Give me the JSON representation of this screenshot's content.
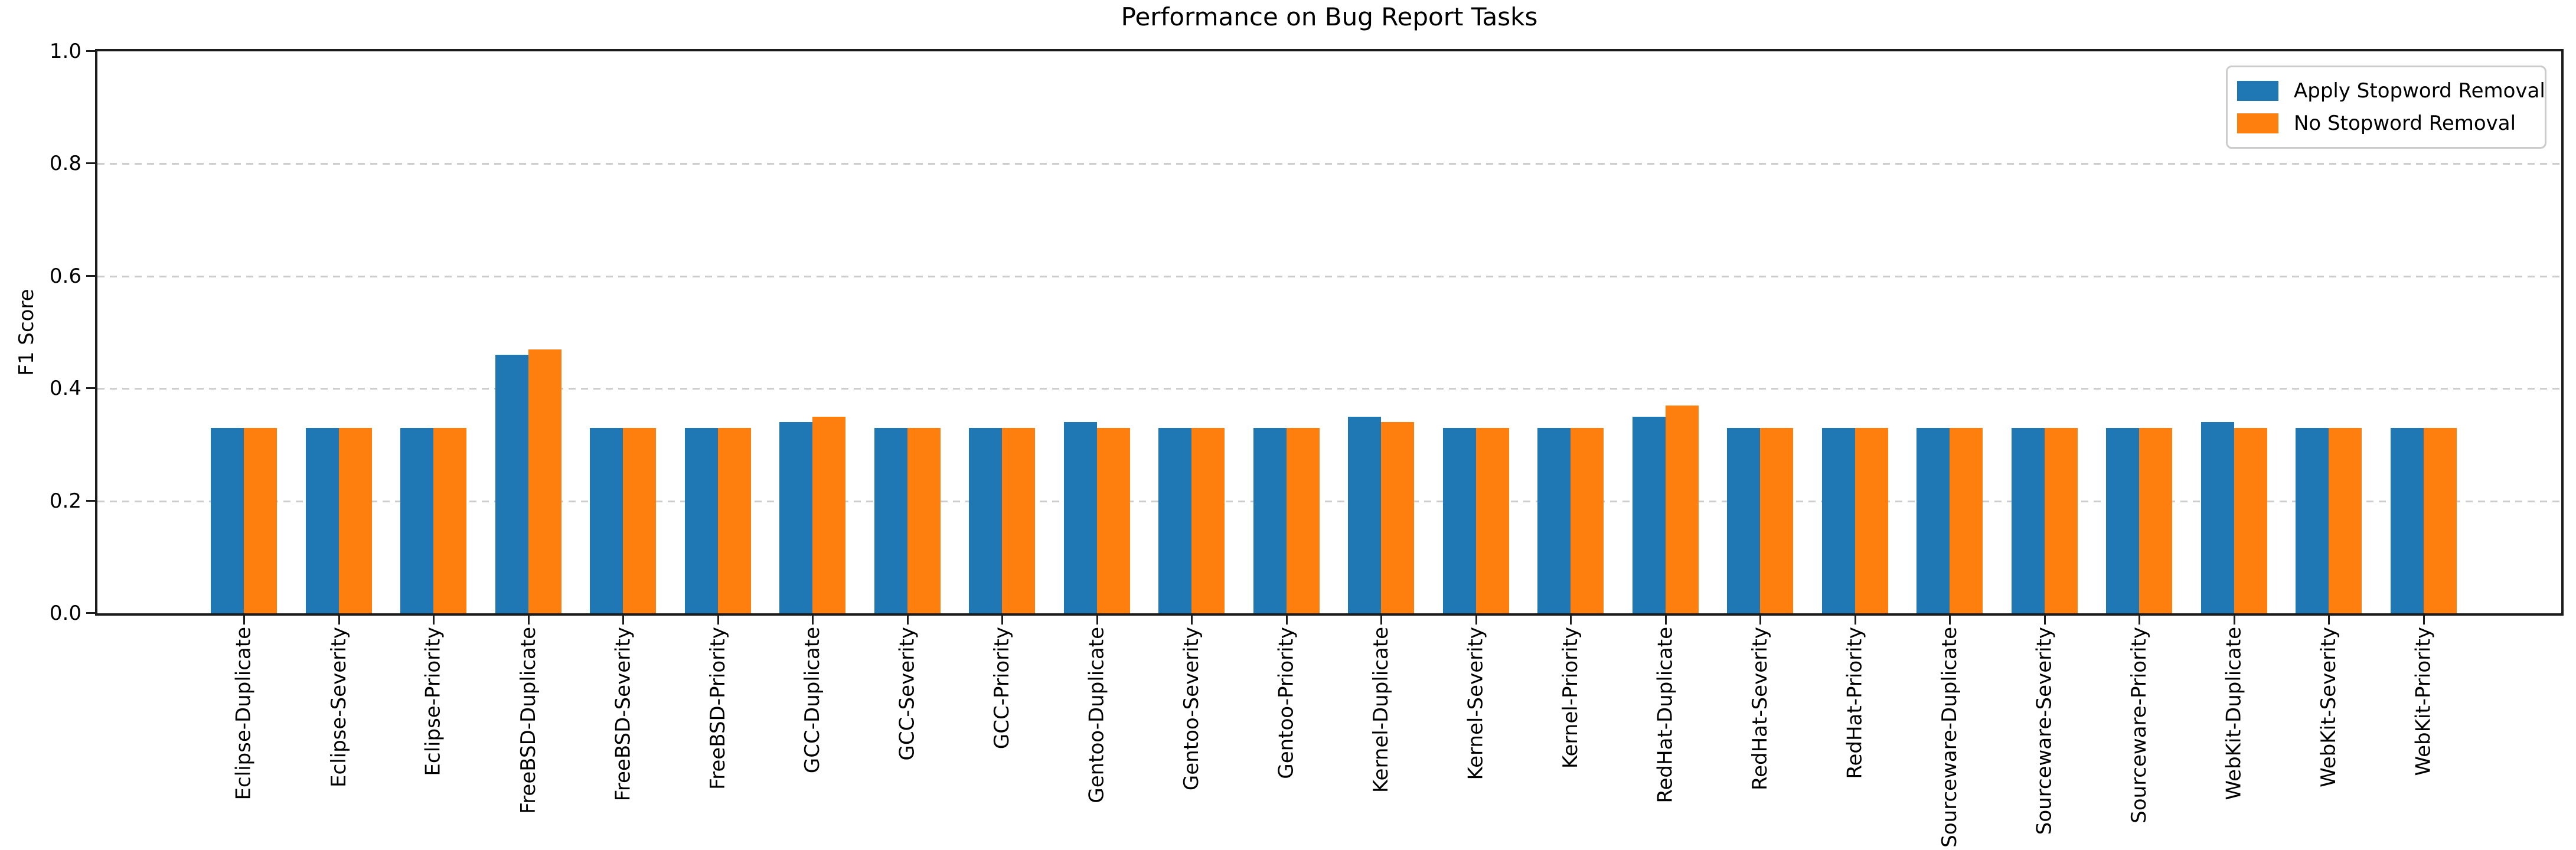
{
  "title": "Performance on Bug Report Tasks",
  "ylabel": "F1 Score",
  "legend": {
    "position": "upper right",
    "entries": [
      "Apply Stopword Removal",
      "No Stopword Removal"
    ]
  },
  "colors": {
    "series1": "#1f77b4",
    "series2": "#ff7f0e",
    "grid": "#cdcdcd",
    "axis": "#1c1c1c"
  },
  "chart_data": {
    "type": "bar",
    "title": "Performance on Bug Report Tasks",
    "xlabel": "",
    "ylabel": "F1 Score",
    "ylim": [
      0,
      1.0
    ],
    "yticks": [
      0.0,
      0.2,
      0.4,
      0.6,
      0.8,
      1.0
    ],
    "grid": "horizontal-dashed",
    "legend_position": "upper right",
    "bar_group": "pairs, no gap within group",
    "categories": [
      "Eclipse-Duplicate",
      "Eclipse-Severity",
      "Eclipse-Priority",
      "FreeBSD-Duplicate",
      "FreeBSD-Severity",
      "FreeBSD-Priority",
      "GCC-Duplicate",
      "GCC-Severity",
      "GCC-Priority",
      "Gentoo-Duplicate",
      "Gentoo-Severity",
      "Gentoo-Priority",
      "Kernel-Duplicate",
      "Kernel-Severity",
      "Kernel-Priority",
      "RedHat-Duplicate",
      "RedHat-Severity",
      "RedHat-Priority",
      "Sourceware-Duplicate",
      "Sourceware-Severity",
      "Sourceware-Priority",
      "WebKit-Duplicate",
      "WebKit-Severity",
      "WebKit-Priority"
    ],
    "series": [
      {
        "name": "Apply Stopword Removal",
        "color": "#1f77b4",
        "values": [
          0.33,
          0.33,
          0.33,
          0.46,
          0.33,
          0.33,
          0.34,
          0.33,
          0.33,
          0.34,
          0.33,
          0.33,
          0.35,
          0.33,
          0.33,
          0.35,
          0.33,
          0.33,
          0.33,
          0.33,
          0.33,
          0.34,
          0.33,
          0.33
        ]
      },
      {
        "name": "No Stopword Removal",
        "color": "#ff7f0e",
        "values": [
          0.33,
          0.33,
          0.33,
          0.47,
          0.33,
          0.33,
          0.35,
          0.33,
          0.33,
          0.33,
          0.33,
          0.33,
          0.34,
          0.33,
          0.33,
          0.37,
          0.33,
          0.33,
          0.33,
          0.33,
          0.33,
          0.33,
          0.33,
          0.33
        ]
      }
    ]
  }
}
